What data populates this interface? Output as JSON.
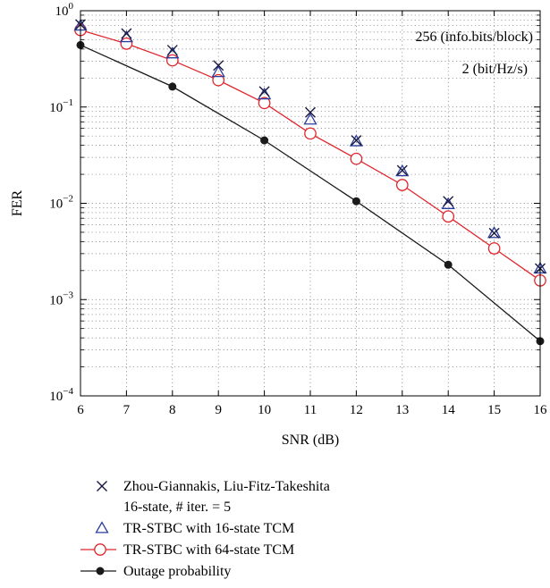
{
  "chart_data": {
    "type": "line",
    "title": "",
    "xlabel": "SNR (dB)",
    "ylabel": "FER",
    "xlim": [
      6,
      16
    ],
    "ylim": [
      0.0001,
      1
    ],
    "yscale": "log",
    "grid": true,
    "legend_position": "below",
    "x_ticks": [
      "6",
      "7",
      "8",
      "9",
      "10",
      "11",
      "12",
      "13",
      "14",
      "15",
      "16"
    ],
    "y_ticks": [
      {
        "base": "10",
        "exp": "0",
        "value": 1
      },
      {
        "base": "10",
        "exp": "−1",
        "value": 0.1
      },
      {
        "base": "10",
        "exp": "−2",
        "value": 0.01
      },
      {
        "base": "10",
        "exp": "−3",
        "value": 0.001
      },
      {
        "base": "10",
        "exp": "−4",
        "value": 0.0001
      }
    ],
    "annotations": [
      "256 (info.bits/block)",
      "2 (bit/Hz/s)"
    ],
    "series": [
      {
        "name": "Zhou-Giannakis, Liu-Fitz-Takeshita",
        "name_line2": "16-state, # iter. = 5",
        "marker": "x",
        "line": false,
        "color": "#1a1a40",
        "x": [
          6,
          7,
          8,
          9,
          10,
          11,
          12,
          13,
          14,
          15,
          16
        ],
        "y": [
          0.72,
          0.58,
          0.39,
          0.27,
          0.145,
          0.088,
          0.045,
          0.022,
          0.0105,
          0.0049,
          0.0021
        ]
      },
      {
        "name": "TR-STBC with 16-state TCM",
        "marker": "triangle",
        "line": false,
        "color": "#2b3d9e",
        "x": [
          6,
          7,
          8,
          9,
          10,
          11,
          12,
          13,
          14,
          15,
          16
        ],
        "y": [
          0.7,
          0.53,
          0.36,
          0.23,
          0.135,
          0.074,
          0.044,
          0.0215,
          0.0098,
          0.0049,
          0.0021
        ]
      },
      {
        "name": "TR-STBC with 64-state TCM",
        "marker": "circle-open",
        "line": true,
        "color": "#e0252b",
        "x": [
          6,
          7,
          8,
          9,
          10,
          11,
          12,
          13,
          14,
          15,
          16
        ],
        "y": [
          0.63,
          0.455,
          0.305,
          0.19,
          0.11,
          0.053,
          0.029,
          0.0155,
          0.0073,
          0.0034,
          0.00158
        ]
      },
      {
        "name": "Outage probability",
        "marker": "circle-filled",
        "line": true,
        "color": "#1a1a1a",
        "x": [
          6,
          8,
          10,
          12,
          14,
          16
        ],
        "y": [
          0.44,
          0.163,
          0.045,
          0.0105,
          0.0023,
          0.00037
        ]
      }
    ]
  }
}
